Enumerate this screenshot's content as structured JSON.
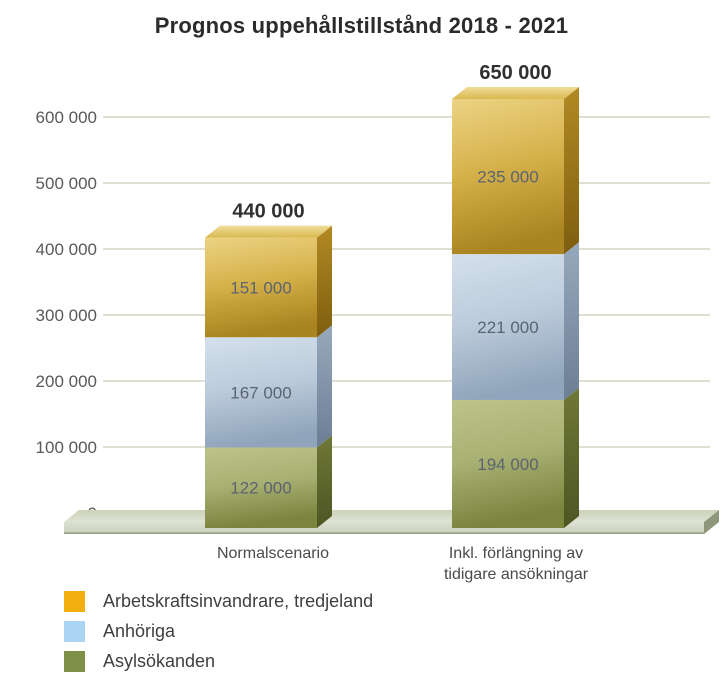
{
  "chart_data": {
    "type": "bar",
    "subtype": "stacked-3d",
    "title": "Prognos uppehållstillstånd 2018 - 2021",
    "categories": [
      "Normalscenario",
      "Inkl. förlängning av tidigare ansökningar"
    ],
    "category_label_lines": [
      [
        "Normalscenario"
      ],
      [
        "Inkl. förlängning av",
        "tidigare ansökningar"
      ]
    ],
    "series": [
      {
        "name": "Asylsökanden",
        "values": [
          122000,
          194000
        ],
        "labels": [
          "122 000",
          "194 000"
        ],
        "colors": {
          "front": [
            "#bdc48b",
            "#a8b073",
            "#7b843d"
          ],
          "side": [
            "#6f7836",
            "#4d5523"
          ],
          "top": [
            "#c8cf9a",
            "#99a25a"
          ]
        }
      },
      {
        "name": "Anhöriga",
        "values": [
          167000,
          221000
        ],
        "labels": [
          "167 000",
          "221 000"
        ],
        "colors": {
          "front": [
            "#d4e0ec",
            "#bccbdb",
            "#90a5bb"
          ],
          "side": [
            "#97a9bc",
            "#6b7e94"
          ],
          "top": [
            "#dce6f0",
            "#b6c7d8"
          ]
        }
      },
      {
        "name": "Arbetskraftsinvandrare, tredjeland",
        "values": [
          151000,
          235000
        ],
        "labels": [
          "151 000",
          "235 000"
        ],
        "colors": {
          "front": [
            "#ecd383",
            "#d5b14a",
            "#aa8420"
          ],
          "side": [
            "#b28a24",
            "#7e5e0f"
          ],
          "top": [
            "#f0dd9b",
            "#d9b84e"
          ]
        }
      }
    ],
    "totals": {
      "values": [
        440000,
        650000
      ],
      "labels": [
        "440 000",
        "650 000"
      ]
    },
    "y_axis": {
      "max": 650000,
      "grid": true,
      "ticks": [
        {
          "value": 0,
          "label": "0"
        },
        {
          "value": 100000,
          "label": "100 000"
        },
        {
          "value": 200000,
          "label": "200 000"
        },
        {
          "value": 300000,
          "label": "300 000"
        },
        {
          "value": 400000,
          "label": "400 000"
        },
        {
          "value": 500000,
          "label": "500 000"
        },
        {
          "value": 600000,
          "label": "600 000"
        }
      ]
    },
    "legend": [
      {
        "label": "Arbetskraftsinvandrare, tredjeland",
        "color": "#f2ad0f"
      },
      {
        "label": "Anhöriga",
        "color": "#abd4f3"
      },
      {
        "label": "Asylsökanden",
        "color": "#7e9147"
      }
    ],
    "style_colors": {
      "gridline": "#c9cdb7",
      "tick_label": "#595959",
      "segment_label": "#5b6470",
      "total_label": "#303030",
      "category_label": "#4a4a4a",
      "floor_top": [
        "#ccd2b9",
        "#dfe3d3"
      ],
      "floor_front": [
        "#dde1d2",
        "#c8cfb8"
      ],
      "floor_edge": "#99a183",
      "floor_end": "#8e9779"
    }
  }
}
